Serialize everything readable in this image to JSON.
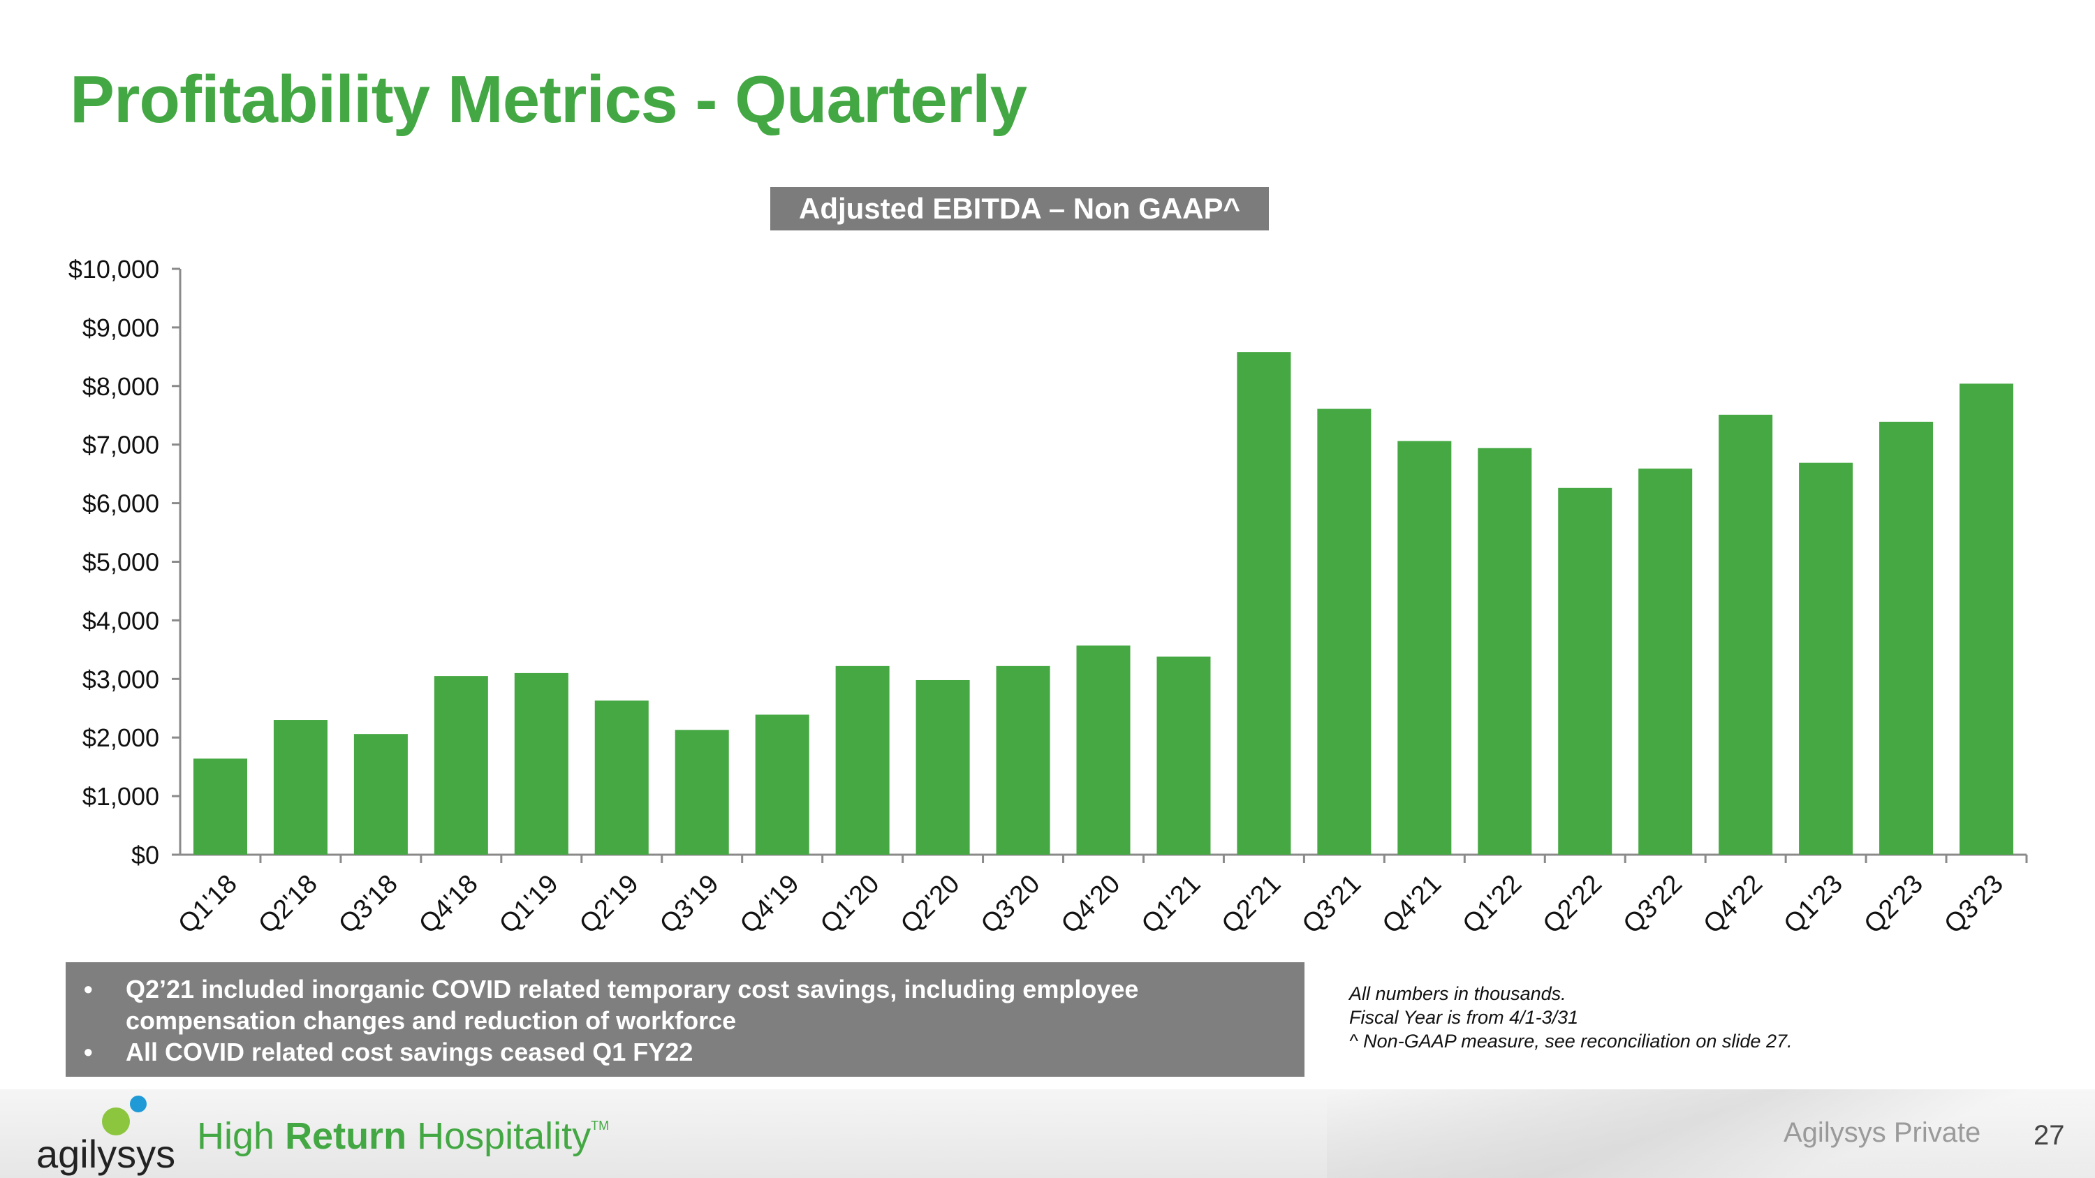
{
  "title": "Profitability Metrics - Quarterly",
  "chart_data": {
    "type": "bar",
    "title": "Adjusted EBITDA – Non GAAP^",
    "categories": [
      "Q1'18",
      "Q2'18",
      "Q3'18",
      "Q4'18",
      "Q1'19",
      "Q2'19",
      "Q3'19",
      "Q4'19",
      "Q1'20",
      "Q2'20",
      "Q3'20",
      "Q4'20",
      "Q1'21",
      "Q2'21",
      "Q3'21",
      "Q4'21",
      "Q1'22",
      "Q2'22",
      "Q3'22",
      "Q4'22",
      "Q1'23",
      "Q2'23",
      "Q3'23"
    ],
    "values": [
      1640,
      2300,
      2060,
      3050,
      3100,
      2630,
      2130,
      2390,
      3220,
      2980,
      3220,
      3570,
      3380,
      8580,
      7610,
      7060,
      6940,
      6260,
      6590,
      7510,
      6690,
      7390,
      8040
    ],
    "ylim": [
      0,
      10000
    ],
    "yticks": [
      "$0",
      "$1,000",
      "$2,000",
      "$3,000",
      "$4,000",
      "$5,000",
      "$6,000",
      "$7,000",
      "$8,000",
      "$9,000",
      "$10,000"
    ],
    "xlabel": "",
    "ylabel": "",
    "grid": false,
    "legend": "none",
    "bar_color": "#46a843"
  },
  "notes": [
    "Q2’21 included inorganic COVID related temporary cost savings, including employee compensation changes and reduction of workforce",
    "All COVID related cost savings ceased Q1 FY22"
  ],
  "bullet_symbol": "•",
  "footnotes": [
    "All numbers in thousands.",
    "Fiscal Year is from 4/1-3/31",
    "^ Non-GAAP measure, see reconciliation on slide 27."
  ],
  "footer": {
    "logo_text": "agilysys",
    "tagline_pre": "High ",
    "tagline_bold": "Return",
    "tagline_post": " Hospitality",
    "tagline_tm": "TM",
    "private_label": "Agilysys Private",
    "page_number": "27"
  },
  "colors": {
    "accent": "#43a843",
    "logo_blue": "#1f9ad6",
    "note_bg": "#7f7f7f"
  }
}
